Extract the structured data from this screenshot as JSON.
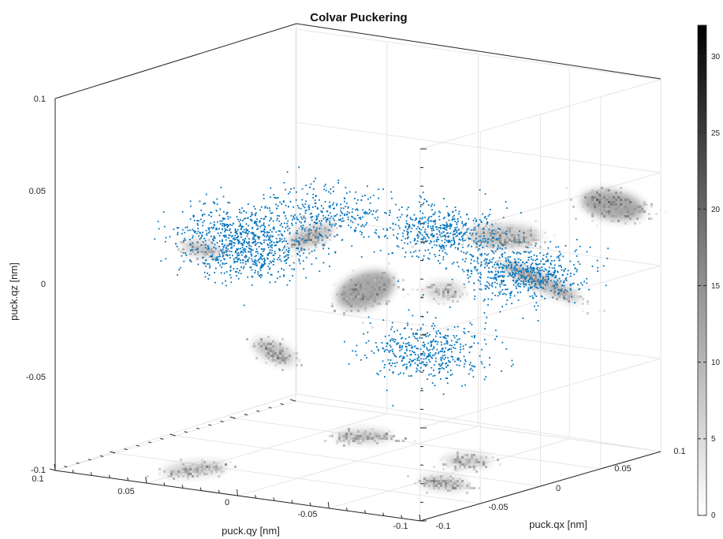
{
  "chart_data": {
    "type": "scatter",
    "title": "Colvar Puckering",
    "xlabel": "puck.qx [nm]",
    "ylabel": "puck.qy [nm]",
    "zlabel": "puck.qz [nm]",
    "xlim": [
      -0.1,
      0.1
    ],
    "ylim": [
      -0.1,
      0.1
    ],
    "zlim": [
      -0.1,
      0.1
    ],
    "x_ticks": [
      "-0.1",
      "-0.05",
      "0",
      "0.05",
      "0.1"
    ],
    "y_ticks": [
      "0.1",
      "0.05",
      "0",
      "-0.05",
      "-0.1"
    ],
    "z_ticks": [
      "0.1",
      "0.05",
      "0",
      "-0.05",
      "-0.1"
    ],
    "grid": true,
    "colorbar": {
      "ticks": [
        "0",
        "5",
        "10",
        "15",
        "20",
        "25",
        "30"
      ],
      "range": [
        0,
        32
      ],
      "colormap": "gray-reversed"
    },
    "series_color": "#0072BD",
    "scatter_clusters": [
      {
        "center": [
          0.045,
          0.06,
          0.0
        ],
        "count": 600
      },
      {
        "center": [
          0.07,
          0.0,
          0.01
        ],
        "count": 500
      },
      {
        "center": [
          0.02,
          -0.03,
          0.025
        ],
        "count": 300
      },
      {
        "center": [
          -0.06,
          -0.02,
          0.02
        ],
        "count": 400
      },
      {
        "center": [
          -0.03,
          -0.045,
          0.022
        ],
        "count": 450
      },
      {
        "center": [
          -0.02,
          0.05,
          -0.03
        ],
        "count": 450
      }
    ],
    "projections": [
      "yz-plane",
      "xz-plane",
      "xy-plane"
    ]
  },
  "colors": {
    "scatter": "#0072BD",
    "grid": "#e6e6e6",
    "axis": "#262626"
  }
}
